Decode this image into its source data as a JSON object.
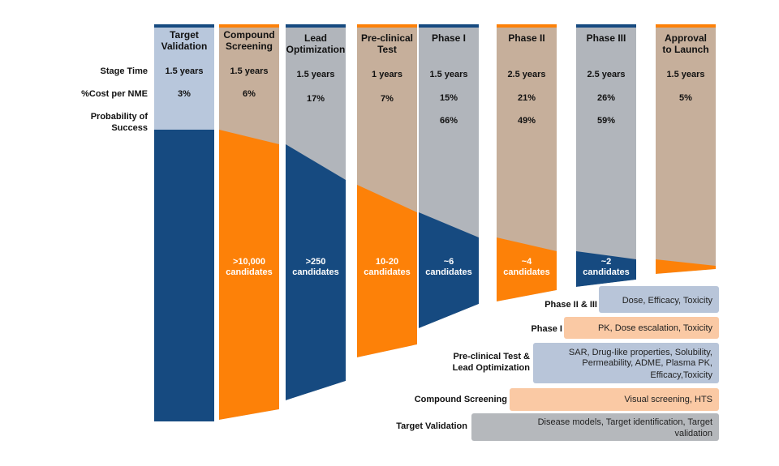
{
  "colors": {
    "navy": "#164a80",
    "orange": "#fd8108",
    "light_blue": "#b8c7dc",
    "tan": "#c6af9b",
    "gray": "#b1b5bb",
    "box_blue": "#b8c5d9",
    "box_orange": "#fac9a4",
    "box_gray": "#b5b8bc"
  },
  "row_labels": {
    "stage_time": "Stage Time",
    "cost": "%Cost per NME",
    "probability_line1": "Probability of",
    "probability_line2": "Success"
  },
  "stages": [
    {
      "title": [
        "Target",
        "Validation"
      ],
      "stage_time": "1.5 years",
      "cost": "3%",
      "probability": "",
      "candidates": []
    },
    {
      "title": [
        "Compound",
        "Screening"
      ],
      "stage_time": "1.5 years",
      "cost": "6%",
      "probability": "",
      "candidates": [
        ">10,000",
        "candidates"
      ]
    },
    {
      "title": [
        "Lead",
        "Optimization"
      ],
      "stage_time": "1.5 years",
      "cost": "17%",
      "probability": "",
      "candidates": [
        ">250",
        "candidates"
      ]
    },
    {
      "title": [
        "Pre-clinical",
        "Test"
      ],
      "stage_time": "1 years",
      "cost": "7%",
      "probability": "",
      "candidates": [
        "10-20",
        "candidates"
      ]
    },
    {
      "title": [
        "Phase I"
      ],
      "stage_time": "1.5 years",
      "cost": "15%",
      "probability": "66%",
      "candidates": [
        "~6",
        "candidates"
      ]
    },
    {
      "title": [
        "Phase II"
      ],
      "stage_time": "2.5 years",
      "cost": "21%",
      "probability": "49%",
      "candidates": [
        "~4",
        "candidates"
      ]
    },
    {
      "title": [
        "Phase III"
      ],
      "stage_time": "2.5 years",
      "cost": "26%",
      "probability": "59%",
      "candidates": [
        "~2",
        "candidates"
      ]
    },
    {
      "title": [
        "Approval",
        "to Launch"
      ],
      "stage_time": "1.5 years",
      "cost": "5%",
      "probability": "",
      "candidates": []
    }
  ],
  "activities": [
    {
      "label": [
        "Phase II & III"
      ],
      "text": [
        "Dose, Efficacy, Toxicity"
      ]
    },
    {
      "label": [
        "Phase I"
      ],
      "text": [
        "PK, Dose escalation, Toxicity"
      ]
    },
    {
      "label": [
        "Pre-clinical Test &",
        "Lead Optimization"
      ],
      "text": [
        "SAR, Drug-like properties, Solubility,",
        "Permeability, ADME, Plasma PK,",
        "Efficacy,Toxicity"
      ]
    },
    {
      "label": [
        "Compound Screening"
      ],
      "text": [
        "Visual screening, HTS"
      ]
    },
    {
      "label": [
        "Target Validation"
      ],
      "text": [
        "Disease models, Target identification, Target",
        "validation"
      ]
    }
  ]
}
